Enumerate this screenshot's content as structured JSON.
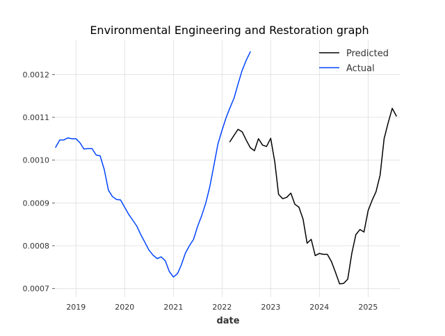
{
  "chart_data": {
    "type": "line",
    "title": "Environmental Engineering and Restoration graph",
    "xlabel": "date",
    "ylabel": "",
    "x_axis": {
      "kind": "date",
      "range": [
        "2018-08-01",
        "2025-09-01"
      ],
      "tick_labels": [
        "2019",
        "2020",
        "2021",
        "2022",
        "2023",
        "2024",
        "2025"
      ]
    },
    "y_axis": {
      "range": [
        0.00068,
        0.00128
      ],
      "ticks": [
        0.0007,
        0.0008,
        0.0009,
        0.001,
        0.0011,
        0.0012
      ],
      "tick_labels": [
        "0.0007",
        "0.0008",
        "0.0009",
        "0.0010",
        "0.0011",
        "0.0012"
      ]
    },
    "grid": true,
    "legend": {
      "placement": "top-right",
      "entries": [
        "Predicted",
        "Actual"
      ]
    },
    "series": [
      {
        "name": "Actual",
        "color": "#0044ff",
        "points": [
          [
            "2018-08-01",
            0.00103
          ],
          [
            "2018-09-01",
            0.001047
          ],
          [
            "2018-10-01",
            0.001047
          ],
          [
            "2018-11-01",
            0.001052
          ],
          [
            "2018-12-01",
            0.00105
          ],
          [
            "2019-01-01",
            0.00105
          ],
          [
            "2019-02-01",
            0.00104
          ],
          [
            "2019-03-01",
            0.001026
          ],
          [
            "2019-04-01",
            0.001027
          ],
          [
            "2019-05-01",
            0.001027
          ],
          [
            "2019-06-01",
            0.001012
          ],
          [
            "2019-07-01",
            0.00101
          ],
          [
            "2019-08-01",
            0.000978
          ],
          [
            "2019-09-01",
            0.00093
          ],
          [
            "2019-10-01",
            0.000915
          ],
          [
            "2019-11-01",
            0.000908
          ],
          [
            "2019-12-01",
            0.000907
          ],
          [
            "2020-01-01",
            0.00089
          ],
          [
            "2020-02-01",
            0.000873
          ],
          [
            "2020-03-01",
            0.00086
          ],
          [
            "2020-04-01",
            0.000846
          ],
          [
            "2020-05-01",
            0.000826
          ],
          [
            "2020-06-01",
            0.000808
          ],
          [
            "2020-07-01",
            0.00079
          ],
          [
            "2020-08-01",
            0.000778
          ],
          [
            "2020-09-01",
            0.00077
          ],
          [
            "2020-10-01",
            0.000774
          ],
          [
            "2020-11-01",
            0.000765
          ],
          [
            "2020-12-01",
            0.00074
          ],
          [
            "2021-01-01",
            0.000727
          ],
          [
            "2021-02-01",
            0.000735
          ],
          [
            "2021-03-01",
            0.000755
          ],
          [
            "2021-04-01",
            0.000783
          ],
          [
            "2021-05-01",
            0.0008
          ],
          [
            "2021-06-01",
            0.000815
          ],
          [
            "2021-07-01",
            0.000845
          ],
          [
            "2021-08-01",
            0.00087
          ],
          [
            "2021-09-01",
            0.0009
          ],
          [
            "2021-10-01",
            0.000938
          ],
          [
            "2021-11-01",
            0.000988
          ],
          [
            "2021-12-01",
            0.001038
          ],
          [
            "2022-01-01",
            0.00107
          ],
          [
            "2022-02-01",
            0.0011
          ],
          [
            "2022-03-01",
            0.001122
          ],
          [
            "2022-04-01",
            0.001145
          ],
          [
            "2022-05-01",
            0.001178
          ],
          [
            "2022-06-01",
            0.00121
          ],
          [
            "2022-07-01",
            0.001233
          ],
          [
            "2022-08-01",
            0.001253
          ]
        ]
      },
      {
        "name": "Predicted",
        "color": "#000000",
        "points": [
          [
            "2022-03-01",
            0.001043
          ],
          [
            "2022-04-01",
            0.001058
          ],
          [
            "2022-05-01",
            0.001072
          ],
          [
            "2022-06-01",
            0.001066
          ],
          [
            "2022-07-01",
            0.001047
          ],
          [
            "2022-08-01",
            0.001029
          ],
          [
            "2022-09-01",
            0.001022
          ],
          [
            "2022-10-01",
            0.00105
          ],
          [
            "2022-11-01",
            0.001035
          ],
          [
            "2022-12-01",
            0.001032
          ],
          [
            "2023-01-01",
            0.001051
          ],
          [
            "2023-02-01",
            0.000995
          ],
          [
            "2023-03-01",
            0.00092
          ],
          [
            "2023-04-01",
            0.00091
          ],
          [
            "2023-05-01",
            0.000913
          ],
          [
            "2023-06-01",
            0.000923
          ],
          [
            "2023-07-01",
            0.000897
          ],
          [
            "2023-08-01",
            0.00089
          ],
          [
            "2023-09-01",
            0.000862
          ],
          [
            "2023-10-01",
            0.000806
          ],
          [
            "2023-11-01",
            0.000815
          ],
          [
            "2023-12-01",
            0.000777
          ],
          [
            "2024-01-01",
            0.000782
          ],
          [
            "2024-02-01",
            0.00078
          ],
          [
            "2024-03-01",
            0.00078
          ],
          [
            "2024-04-01",
            0.000763
          ],
          [
            "2024-05-01",
            0.000738
          ],
          [
            "2024-06-01",
            0.000711
          ],
          [
            "2024-07-01",
            0.000712
          ],
          [
            "2024-08-01",
            0.000722
          ],
          [
            "2024-09-01",
            0.000783
          ],
          [
            "2024-10-01",
            0.000826
          ],
          [
            "2024-11-01",
            0.000838
          ],
          [
            "2024-12-01",
            0.000832
          ],
          [
            "2025-01-01",
            0.000882
          ],
          [
            "2025-02-01",
            0.000907
          ],
          [
            "2025-03-01",
            0.000926
          ],
          [
            "2025-04-01",
            0.000965
          ],
          [
            "2025-05-01",
            0.00105
          ],
          [
            "2025-06-01",
            0.001088
          ],
          [
            "2025-07-01",
            0.001121
          ],
          [
            "2025-08-01",
            0.001103
          ]
        ]
      }
    ]
  }
}
